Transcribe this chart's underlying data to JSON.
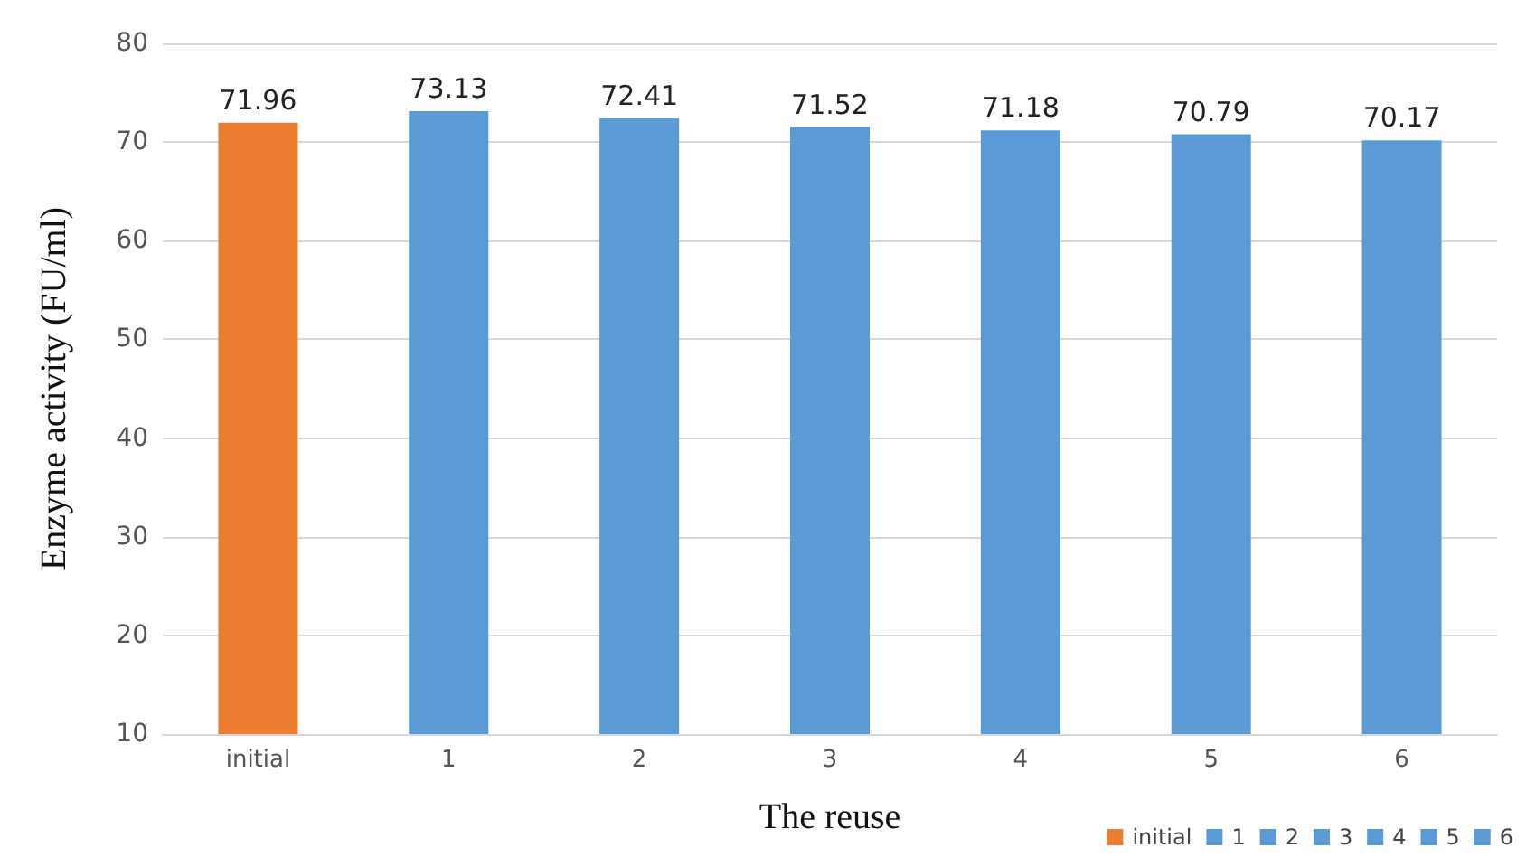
{
  "chart_data": {
    "type": "bar",
    "xlabel": "The reuse",
    "ylabel": "Enzyme activity (FU/ml)",
    "categories": [
      "initial",
      "1",
      "2",
      "3",
      "4",
      "5",
      "6"
    ],
    "series": [
      {
        "name": "initial",
        "color": "#ed7d31",
        "values": [
          71.96,
          null,
          null,
          null,
          null,
          null,
          null
        ]
      },
      {
        "name": "1",
        "color": "#5b9bd5",
        "values": [
          null,
          73.13,
          null,
          null,
          null,
          null,
          null
        ]
      },
      {
        "name": "2",
        "color": "#5b9bd5",
        "values": [
          null,
          null,
          72.41,
          null,
          null,
          null,
          null
        ]
      },
      {
        "name": "3",
        "color": "#5b9bd5",
        "values": [
          null,
          null,
          null,
          71.52,
          null,
          null,
          null
        ]
      },
      {
        "name": "4",
        "color": "#5b9bd5",
        "values": [
          null,
          null,
          null,
          null,
          71.18,
          null,
          null
        ]
      },
      {
        "name": "5",
        "color": "#5b9bd5",
        "values": [
          null,
          null,
          null,
          null,
          null,
          70.79,
          null
        ]
      },
      {
        "name": "6",
        "color": "#5b9bd5",
        "values": [
          null,
          null,
          null,
          null,
          null,
          null,
          70.17
        ]
      }
    ],
    "ylim": [
      10,
      80
    ],
    "yticks": [
      10,
      20,
      30,
      40,
      50,
      60,
      70,
      80
    ],
    "grid": "y",
    "data_labels": true,
    "legend": "bottom right"
  }
}
